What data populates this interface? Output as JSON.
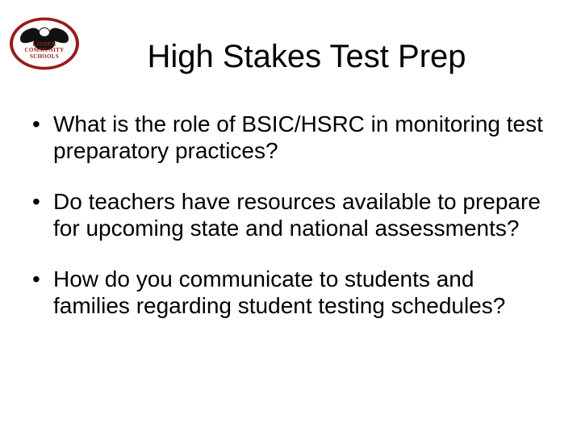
{
  "slide": {
    "title": "High Stakes Test Prep",
    "title_fontsize": 40,
    "body_fontsize": 28,
    "background_color": "#ffffff",
    "text_color": "#000000",
    "font_family": "Arial",
    "bullets": [
      "What is the role of BSIC/HSRC in monitoring test preparatory practices?",
      "Do teachers have resources available to prepare for upcoming state and national assessments?",
      "How do you communicate to students and families regarding student testing schedules?"
    ]
  },
  "logo": {
    "line1": "LINDEN",
    "line2": "COMMUNITY",
    "line3": "SCHOOLS",
    "ring_color": "#991a1a",
    "text_color": "#9b1a1a",
    "eagle_color": "#111111"
  }
}
